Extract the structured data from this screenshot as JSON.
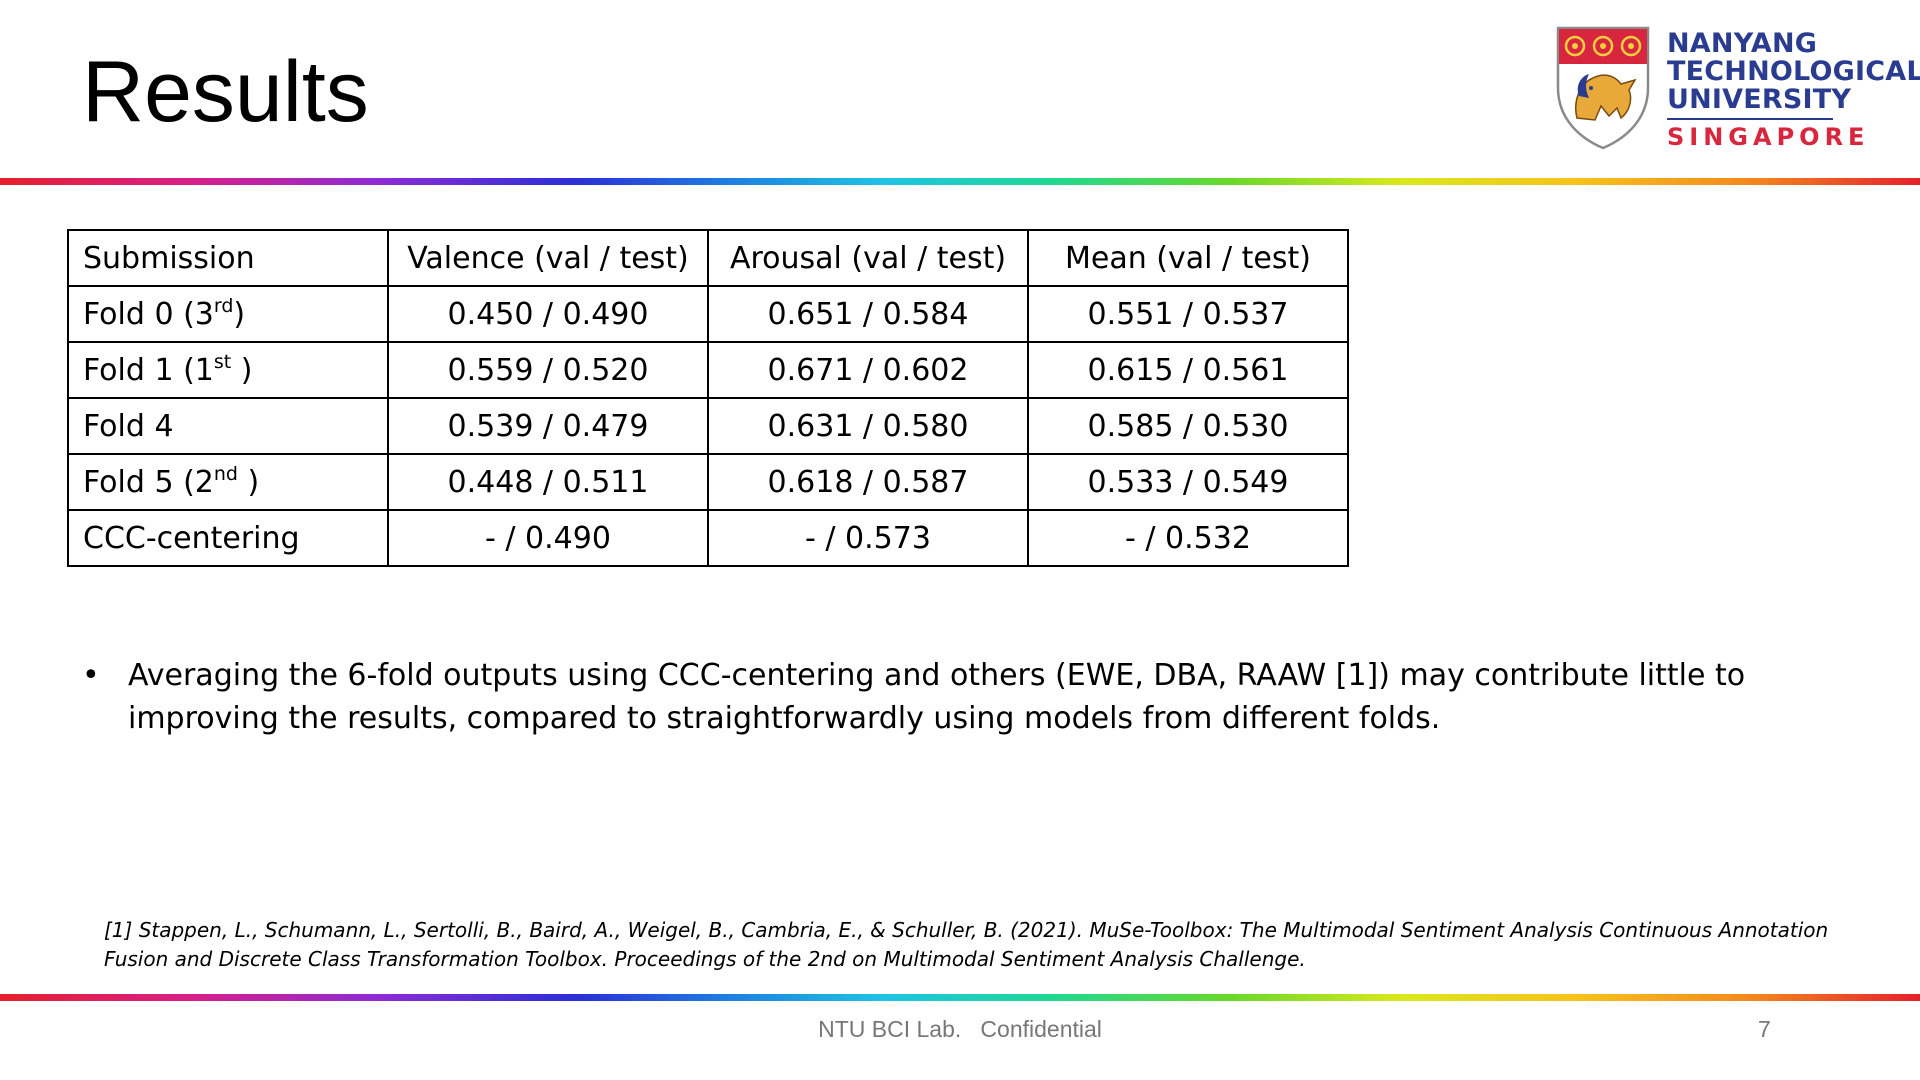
{
  "slide": {
    "title": "Results",
    "logo": {
      "line1": "NANYANG",
      "line2": "TECHNOLOGICAL",
      "line3": "UNIVERSITY",
      "line4": "SINGAPORE"
    },
    "table": {
      "headers": [
        "Submission",
        "Valence (val / test)",
        "Arousal (val / test)",
        "Mean (val / test)"
      ],
      "rows": [
        {
          "name": "Fold 0 (3",
          "sup": "rd",
          "suffix": ")",
          "valence": "0.450 / 0.490",
          "arousal": "0.651 / 0.584",
          "mean": "0.551 / 0.537"
        },
        {
          "name": "Fold 1 (1",
          "sup": "st",
          "suffix": " )",
          "valence": "0.559 / 0.520",
          "arousal": "0.671 / 0.602",
          "mean": "0.615 / 0.561"
        },
        {
          "name": "Fold 4",
          "sup": "",
          "suffix": "",
          "valence": "0.539 / 0.479",
          "arousal": "0.631 / 0.580",
          "mean": "0.585 / 0.530"
        },
        {
          "name": "Fold 5 (2",
          "sup": "nd",
          "suffix": " )",
          "valence": "0.448 / 0.511",
          "arousal": "0.618 / 0.587",
          "mean": "0.533 / 0.549"
        },
        {
          "name": "CCC-centering",
          "sup": "",
          "suffix": "",
          "valence": "- / 0.490",
          "arousal": "- / 0.573",
          "mean": "- / 0.532"
        }
      ]
    },
    "bullet_marker": "•",
    "bullet": "Averaging the 6-fold outputs using CCC-centering and others (EWE, DBA, RAAW [1]) may contribute little to improving the results, compared to straightforwardly using models from different folds.",
    "reference": "[1] Stappen, L., Schumann, L., Sertolli, B., Baird, A., Weigel, B., Cambria, E., & Schuller, B. (2021). MuSe-Toolbox: The Multimodal Sentiment Analysis Continuous Annotation Fusion and Discrete Class Transformation Toolbox. Proceedings of the 2nd on Multimodal Sentiment Analysis Challenge.",
    "footer": "NTU BCI Lab.   Confidential",
    "page_number": "7"
  }
}
